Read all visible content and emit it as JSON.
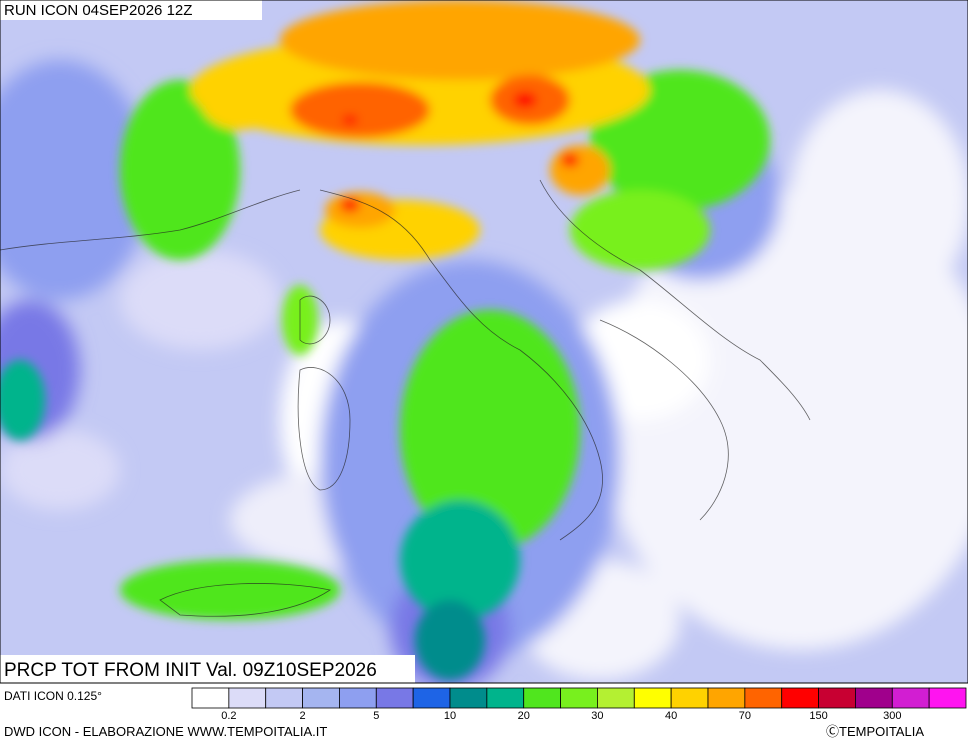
{
  "header": {
    "run": "RUN ICON 04SEP2026 12Z"
  },
  "map": {
    "label": "PRCP TOT FROM INIT Val. 09Z10SEP2026"
  },
  "legend": {
    "source": "DATI ICON 0.125°",
    "colors": [
      "#ffffff",
      "#dcdcf8",
      "#c3c9f4",
      "#a5b5f0",
      "#8e9ff0",
      "#7878e6",
      "#1e64e6",
      "#008c8c",
      "#00b48c",
      "#50e61e",
      "#78f01e",
      "#b4f032",
      "#ffff00",
      "#ffd200",
      "#ffa500",
      "#ff6400",
      "#ff0000",
      "#c80032",
      "#a0008c",
      "#d21ed2",
      "#ff14f0"
    ],
    "labels": [
      0.2,
      2,
      5,
      10,
      20,
      30,
      40,
      70,
      150,
      300
    ]
  },
  "footer": {
    "credit": "DWD ICON - ELABORAZIONE WWW.TEMPOITALIA.IT",
    "copyright": "ⒸTEMPOITALIA"
  }
}
